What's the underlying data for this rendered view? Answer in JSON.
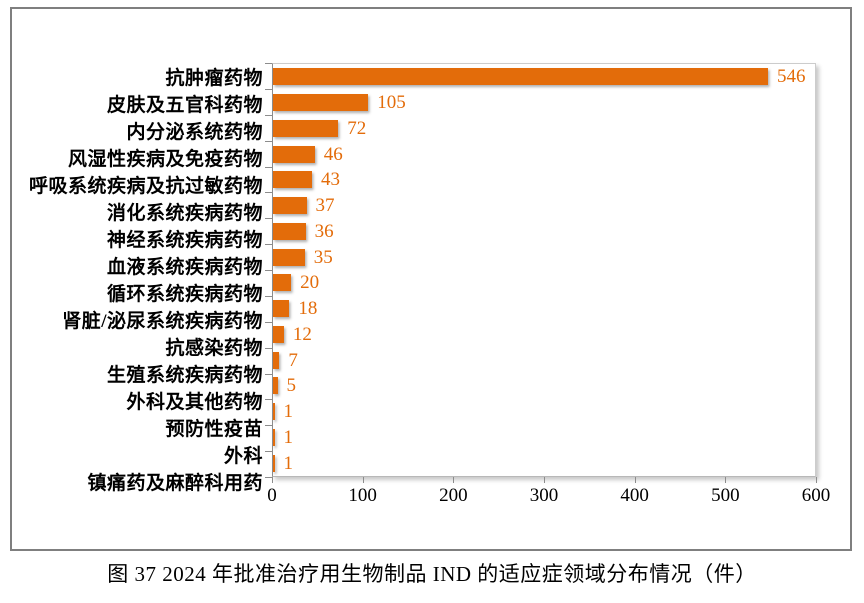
{
  "figure": {
    "caption": "图 37  2024 年批准治疗用生物制品 IND 的适应症领域分布情况（件）"
  },
  "chart_data": {
    "type": "bar",
    "orientation": "horizontal",
    "title": "",
    "xlabel": "",
    "ylabel": "",
    "categories": [
      "抗肿瘤药物",
      "皮肤及五官科药物",
      "内分泌系统药物",
      "风湿性疾病及免疫药物",
      "呼吸系统疾病及抗过敏药物",
      "消化系统疾病药物",
      "神经系统疾病药物",
      "血液系统疾病药物",
      "循环系统疾病药物",
      "肾脏/泌尿系统疾病药物",
      "抗感染药物",
      "生殖系统疾病药物",
      "外科及其他药物",
      "预防性疫苗",
      "外科",
      "镇痛药及麻醉科用药"
    ],
    "values": [
      546,
      105,
      72,
      46,
      43,
      37,
      36,
      35,
      20,
      18,
      12,
      7,
      5,
      1,
      1,
      1
    ],
    "xlim": [
      0,
      600
    ],
    "xticks": [
      0,
      100,
      200,
      300,
      400,
      500,
      600
    ],
    "grid": false,
    "legend": null,
    "data_labels": true
  },
  "colors": {
    "bar": "#E36C0A",
    "value_label": "#E36C0A",
    "axis": "#8c8c8c",
    "frame_border": "#7f7f7f",
    "text": "#000000"
  }
}
